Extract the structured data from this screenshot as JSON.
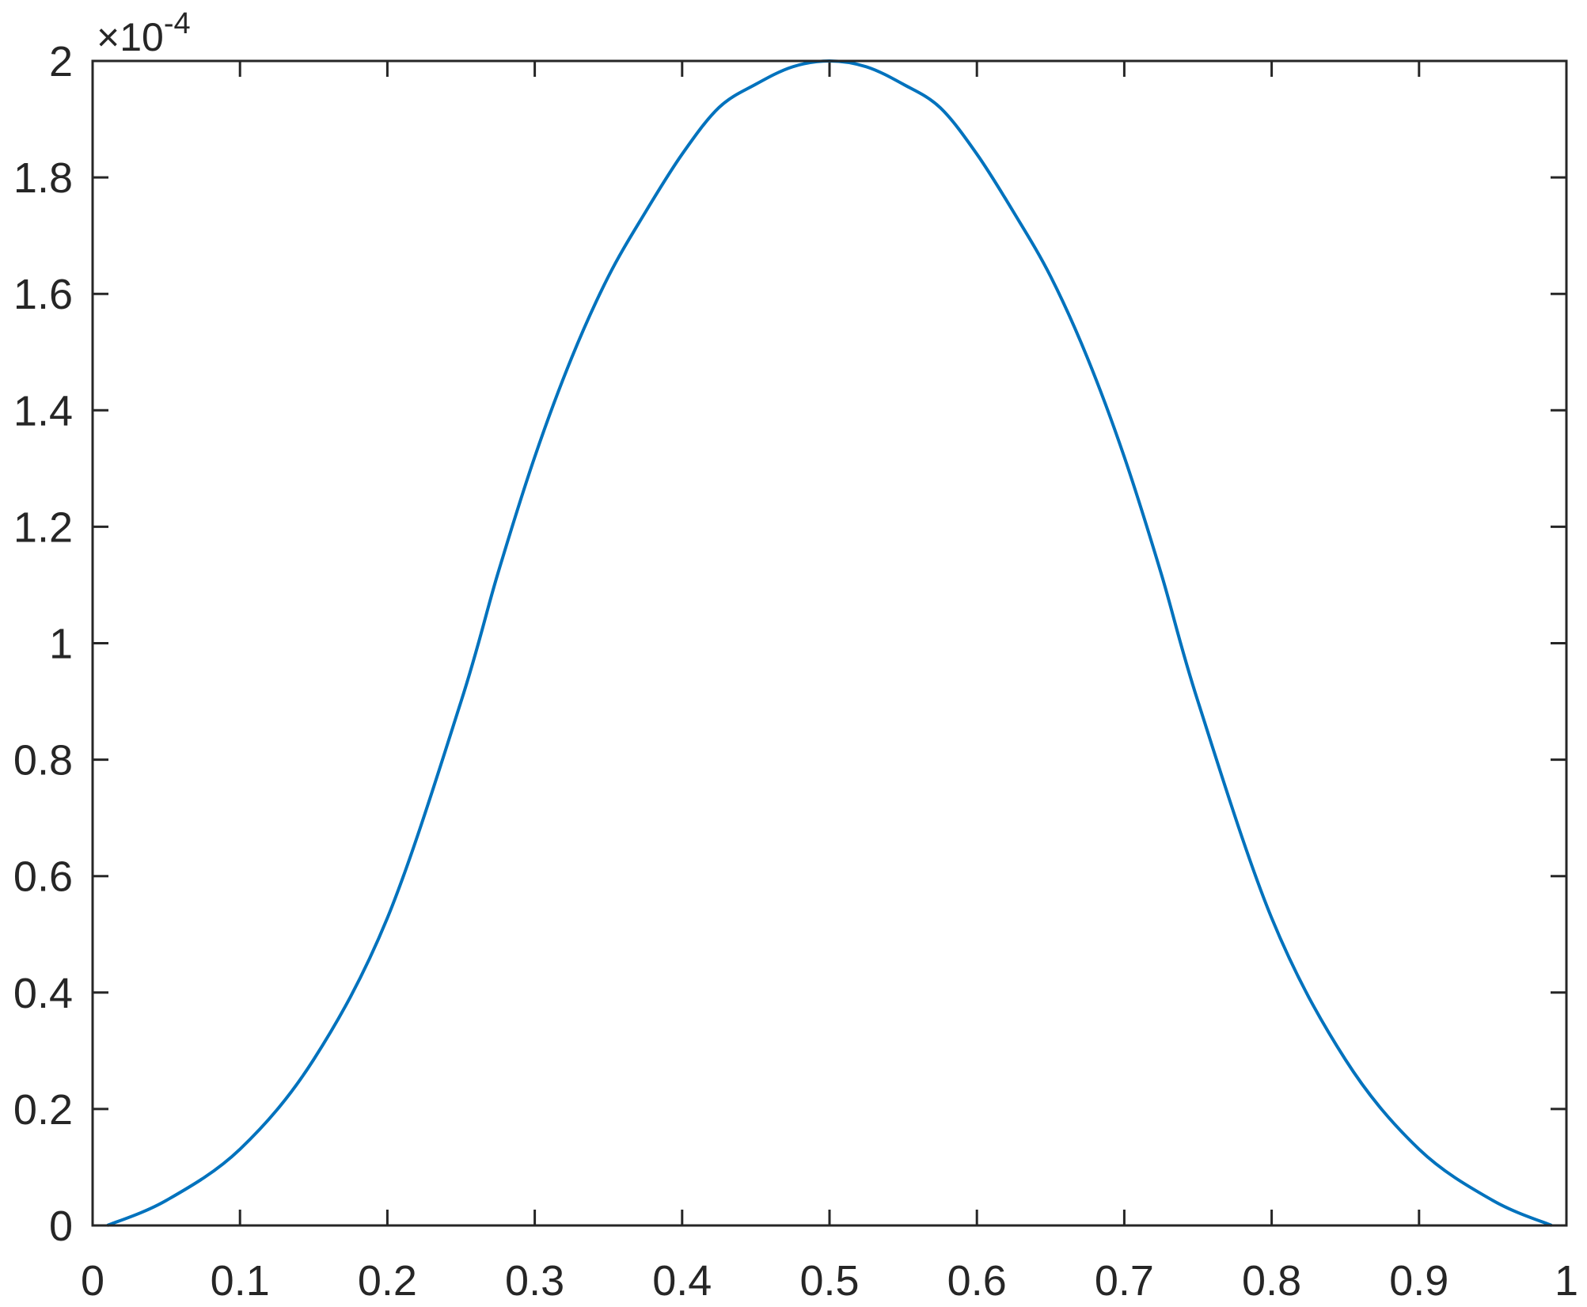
{
  "chart_data": {
    "type": "line",
    "title": "",
    "xlabel": "",
    "ylabel": "",
    "xlim": [
      0,
      1
    ],
    "ylim": [
      0,
      2
    ],
    "y_exponent_label": {
      "base": "×10",
      "exponent": "-4"
    },
    "y_scale_factor": 0.0001,
    "grid": false,
    "box": true,
    "x_ticks": [
      "0",
      "0.1",
      "0.2",
      "0.3",
      "0.4",
      "0.5",
      "0.6",
      "0.7",
      "0.8",
      "0.9",
      "1"
    ],
    "y_ticks": [
      "0",
      "0.2",
      "0.4",
      "0.6",
      "0.8",
      "1",
      "1.2",
      "1.4",
      "1.6",
      "1.8",
      "2"
    ],
    "series": [
      {
        "color": "#0072BD",
        "x": [
          0.01,
          0.05,
          0.1,
          0.15,
          0.2,
          0.25,
          0.275,
          0.3,
          0.325,
          0.35,
          0.375,
          0.4,
          0.425,
          0.45,
          0.475,
          0.5,
          0.525,
          0.55,
          0.575,
          0.6,
          0.625,
          0.65,
          0.675,
          0.7,
          0.725,
          0.75,
          0.8,
          0.85,
          0.9,
          0.95,
          0.99
        ],
        "y": [
          0,
          0.043,
          0.131,
          0.285,
          0.528,
          0.9,
          1.12,
          1.32,
          1.49,
          1.63,
          1.74,
          1.84,
          1.92,
          1.96,
          1.99,
          2.0,
          1.99,
          1.96,
          1.92,
          1.84,
          1.74,
          1.63,
          1.49,
          1.32,
          1.12,
          0.9,
          0.528,
          0.285,
          0.131,
          0.043,
          0
        ]
      }
    ]
  }
}
